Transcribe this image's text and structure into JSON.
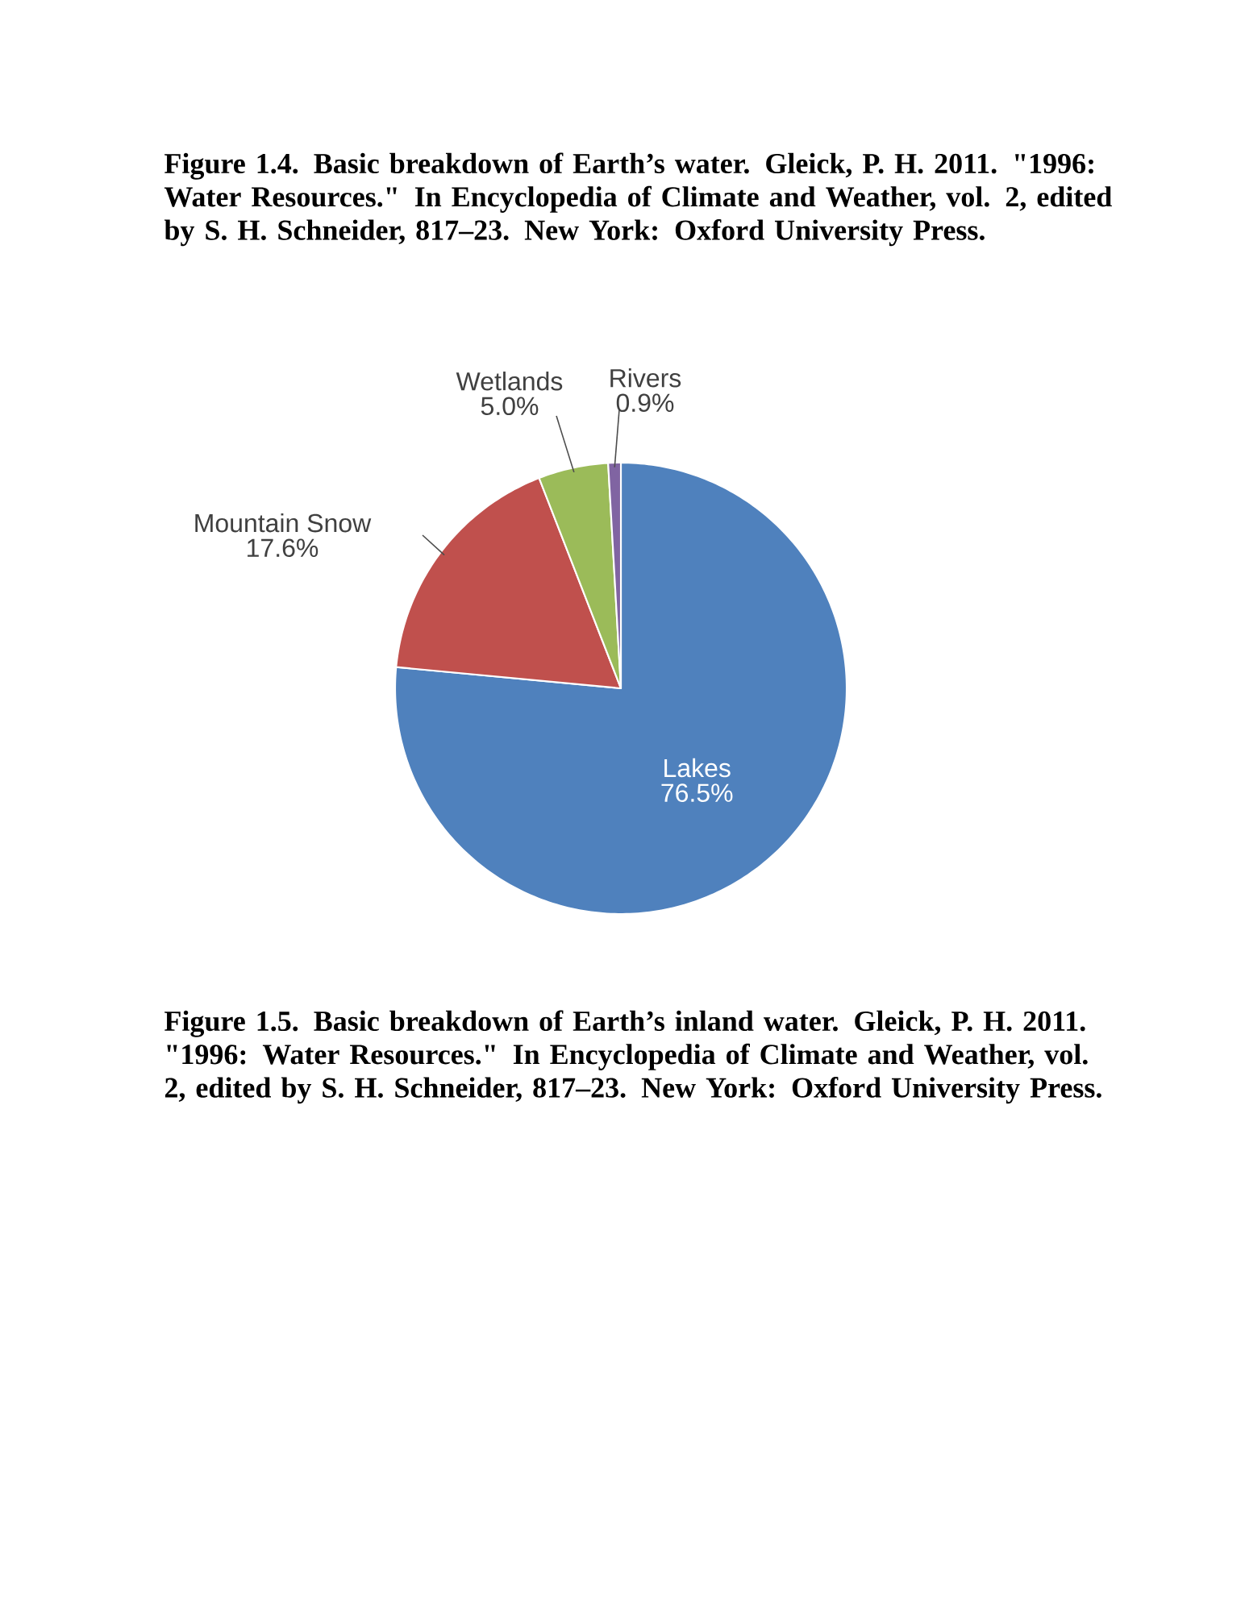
{
  "chart_data": {
    "type": "pie",
    "title": "Figure 1.4. Basic breakdown of Earth’s water. Gleick, P. H. 2011. \"1996: Water Resources.\" In Encyclopedia of Climate and Weather, vol. 2, edited by S. H. Schneider, 817–23. New York: Oxford University Press.",
    "categories": [
      "Lakes",
      "Mountain Snow",
      "Wetlands",
      "Rivers"
    ],
    "values": [
      76.5,
      17.6,
      5.0,
      0.9
    ],
    "value_labels": [
      "76.5%",
      "17.6%",
      "5.0%",
      "0.9%"
    ],
    "colors": [
      "#4f81bd",
      "#c0504d",
      "#9bbb59",
      "#8064a2"
    ],
    "annotations": [
      "Figure 1.5. Basic breakdown of Earth’s inland water. Gleick, P. H. 2011. \"1996: Water Resources.\" In Encyclopedia of Climate and Weather, vol. 2, edited by S. H. Schneider, 817–23. New York: Oxford University Press."
    ]
  }
}
